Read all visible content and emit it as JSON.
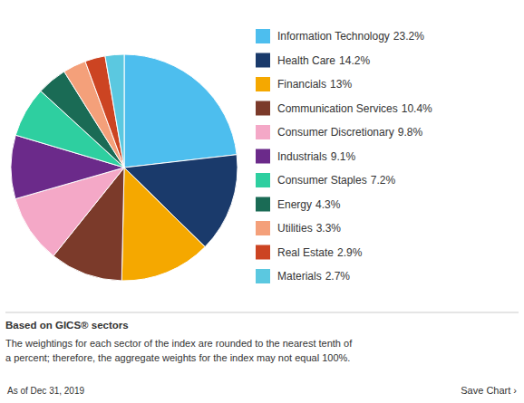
{
  "chart_data": {
    "type": "pie",
    "categories": [
      "Information Technology",
      "Health Care",
      "Financials",
      "Communication Services",
      "Consumer Discretionary",
      "Industrials",
      "Consumer Staples",
      "Energy",
      "Utilities",
      "Real Estate",
      "Materials"
    ],
    "values": [
      23.2,
      14.2,
      13.0,
      10.4,
      9.8,
      9.1,
      7.2,
      4.3,
      3.3,
      2.9,
      2.7
    ],
    "value_labels": [
      "23.2%",
      "14.2%",
      "13%",
      "10.4%",
      "9.8%",
      "9.1%",
      "7.2%",
      "4.3%",
      "3.3%",
      "2.9%",
      "2.7%"
    ],
    "colors": [
      "#4DBEEE",
      "#1A3A6B",
      "#F5A800",
      "#7B3A2A",
      "#F4A8C7",
      "#6B2A8A",
      "#2ECFA0",
      "#1A6B55",
      "#F4A07A",
      "#CC4422",
      "#5BC8E0"
    ],
    "legend": "right",
    "annotations": [
      "Based on GICS® sectors",
      "The weightings for each sector of the index are rounded to the nearest tenth of",
      "a percent; therefore, the aggregate weights for the index may not equal 100%.",
      "As of Dec 31, 2019",
      "Save Chart ›"
    ]
  }
}
